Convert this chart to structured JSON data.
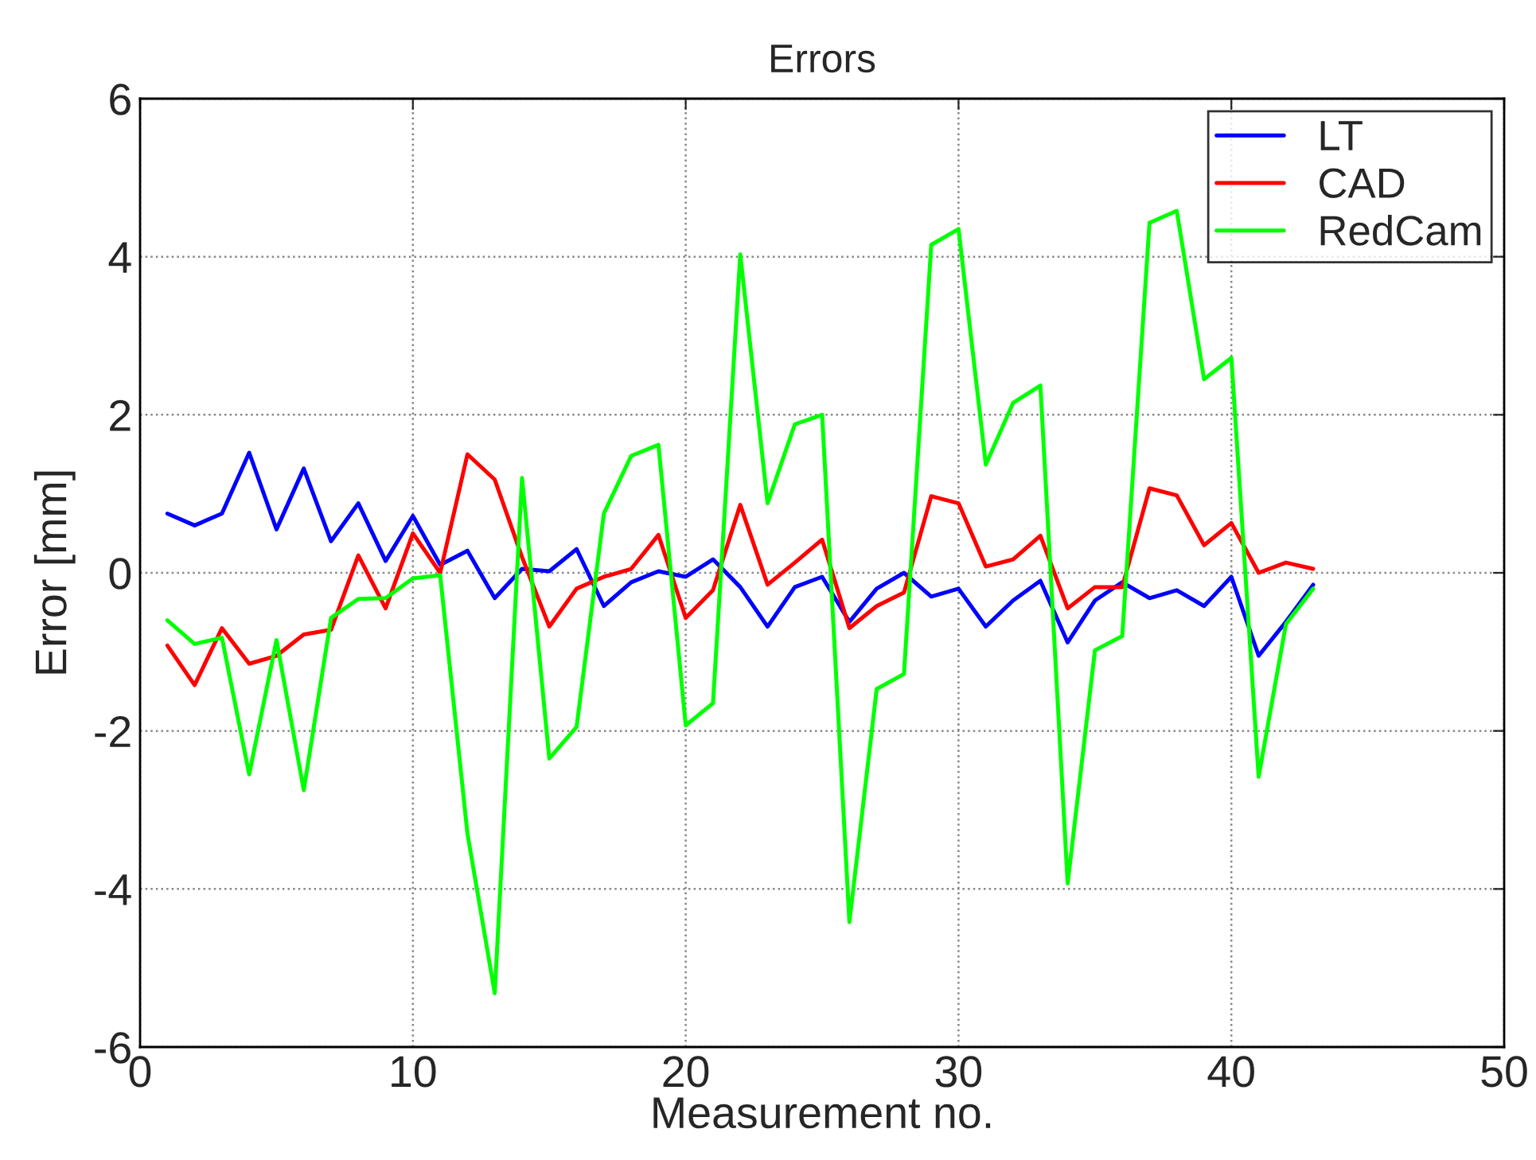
{
  "chart_data": {
    "type": "line",
    "title": "Errors",
    "xlabel": "Measurement no.",
    "ylabel": "Error [mm]",
    "x": [
      1,
      2,
      3,
      4,
      5,
      6,
      7,
      8,
      9,
      10,
      11,
      12,
      13,
      14,
      15,
      16,
      17,
      18,
      19,
      20,
      21,
      22,
      23,
      24,
      25,
      26,
      27,
      28,
      29,
      30,
      31,
      32,
      33,
      34,
      35,
      36,
      37,
      38,
      39,
      40,
      41,
      42,
      43
    ],
    "series": [
      {
        "name": "LT",
        "color": "#0000ff",
        "values": [
          0.75,
          0.6,
          0.75,
          1.52,
          0.55,
          1.32,
          0.4,
          0.88,
          0.15,
          0.72,
          0.1,
          0.28,
          -0.32,
          0.05,
          0.02,
          0.3,
          -0.42,
          -0.12,
          0.02,
          -0.05,
          0.17,
          -0.18,
          -0.68,
          -0.18,
          -0.05,
          -0.62,
          -0.2,
          0.0,
          -0.3,
          -0.2,
          -0.68,
          -0.35,
          -0.1,
          -0.88,
          -0.35,
          -0.12,
          -0.32,
          -0.22,
          -0.42,
          -0.05,
          -1.05,
          -0.62,
          -0.15
        ]
      },
      {
        "name": "CAD",
        "color": "#ff0000",
        "values": [
          -0.92,
          -1.42,
          -0.7,
          -1.15,
          -1.05,
          -0.78,
          -0.72,
          0.22,
          -0.45,
          0.5,
          0.0,
          1.5,
          1.18,
          0.2,
          -0.68,
          -0.2,
          -0.05,
          0.05,
          0.48,
          -0.57,
          -0.22,
          0.86,
          -0.15,
          0.13,
          0.42,
          -0.7,
          -0.42,
          -0.25,
          0.97,
          0.88,
          0.08,
          0.17,
          0.47,
          -0.45,
          -0.18,
          -0.18,
          1.07,
          0.98,
          0.35,
          0.63,
          0.0,
          0.13,
          0.05
        ]
      },
      {
        "name": "RedCam",
        "color": "#00ff00",
        "values": [
          -0.6,
          -0.9,
          -0.82,
          -2.55,
          -0.85,
          -2.75,
          -0.57,
          -0.33,
          -0.32,
          -0.07,
          -0.03,
          -3.3,
          -5.32,
          1.2,
          -2.35,
          -1.95,
          0.75,
          1.48,
          1.62,
          -1.93,
          -1.65,
          4.03,
          0.88,
          1.88,
          2.0,
          -4.42,
          -1.47,
          -1.28,
          4.15,
          4.35,
          1.37,
          2.15,
          2.37,
          -3.93,
          -0.98,
          -0.8,
          4.43,
          4.58,
          2.45,
          2.72,
          -2.58,
          -0.65,
          -0.2
        ]
      }
    ],
    "xlim": [
      0,
      50
    ],
    "ylim": [
      -6,
      6
    ],
    "xticks": [
      0,
      10,
      20,
      30,
      40,
      50
    ],
    "yticks": [
      -6,
      -4,
      -2,
      0,
      2,
      4,
      6
    ],
    "grid": true,
    "legend": "top right",
    "line_style": "solid"
  }
}
